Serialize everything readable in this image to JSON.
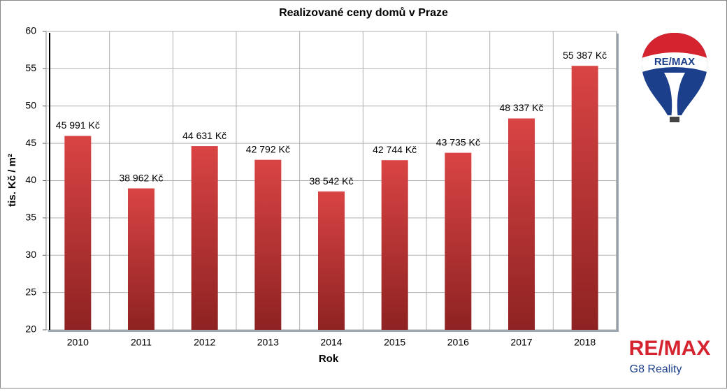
{
  "chart_data": {
    "type": "bar",
    "title": "Realizované ceny domů v Praze",
    "x_label": "Rok",
    "y_label": "tis. Kč / m²",
    "categories": [
      "2010",
      "2011",
      "2012",
      "2013",
      "2014",
      "2015",
      "2016",
      "2017",
      "2018"
    ],
    "values": [
      45.991,
      38.962,
      44.631,
      42.792,
      38.542,
      42.744,
      43.735,
      48.337,
      55.387
    ],
    "value_labels": [
      "45 991 Kč",
      "38 962 Kč",
      "44 631 Kč",
      "42 792 Kč",
      "38 542 Kč",
      "42 744 Kč",
      "43 735 Kč",
      "48 337 Kč",
      "55 387 Kč"
    ],
    "color": "#d23c3c",
    "ylim": [
      20,
      60
    ],
    "yticks": [
      20,
      25,
      30,
      35,
      40,
      45,
      50,
      55,
      60
    ],
    "grid": true
  },
  "logo": {
    "balloon_text": "RE/MAX",
    "brand": "RE/MAX",
    "office": "G8 Reality"
  }
}
